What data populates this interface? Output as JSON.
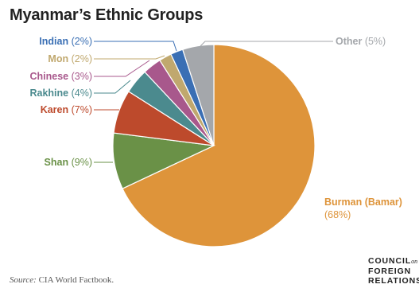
{
  "chart_data": {
    "type": "pie",
    "title": "Myanmar’s Ethnic Groups",
    "start_angle_deg": 0,
    "slices": [
      {
        "name": "Burman (Bamar)",
        "value": 68,
        "label": "(68%)",
        "color": "#de943a"
      },
      {
        "name": "Shan",
        "value": 9,
        "label": "(9%)",
        "color": "#6a9147"
      },
      {
        "name": "Karen",
        "value": 7,
        "label": "(7%)",
        "color": "#bd4a2c"
      },
      {
        "name": "Rakhine",
        "value": 4,
        "label": "(4%)",
        "color": "#4b8a8e"
      },
      {
        "name": "Chinese",
        "value": 3,
        "label": "(3%)",
        "color": "#a8588c"
      },
      {
        "name": "Mon",
        "value": 2,
        "label": "(2%)",
        "color": "#c0a86e"
      },
      {
        "name": "Indian",
        "value": 2,
        "label": "(2%)",
        "color": "#3a6fb4"
      },
      {
        "name": "Other",
        "value": 5,
        "label": "(5%)",
        "color": "#a4a7ab"
      }
    ]
  },
  "source": {
    "prefix": "Source:",
    "text": "CIA World Factbook."
  },
  "logo": {
    "line1": "COUNCIL",
    "on": "on",
    "line2": "FOREIGN",
    "line3": "RELATIONS"
  }
}
